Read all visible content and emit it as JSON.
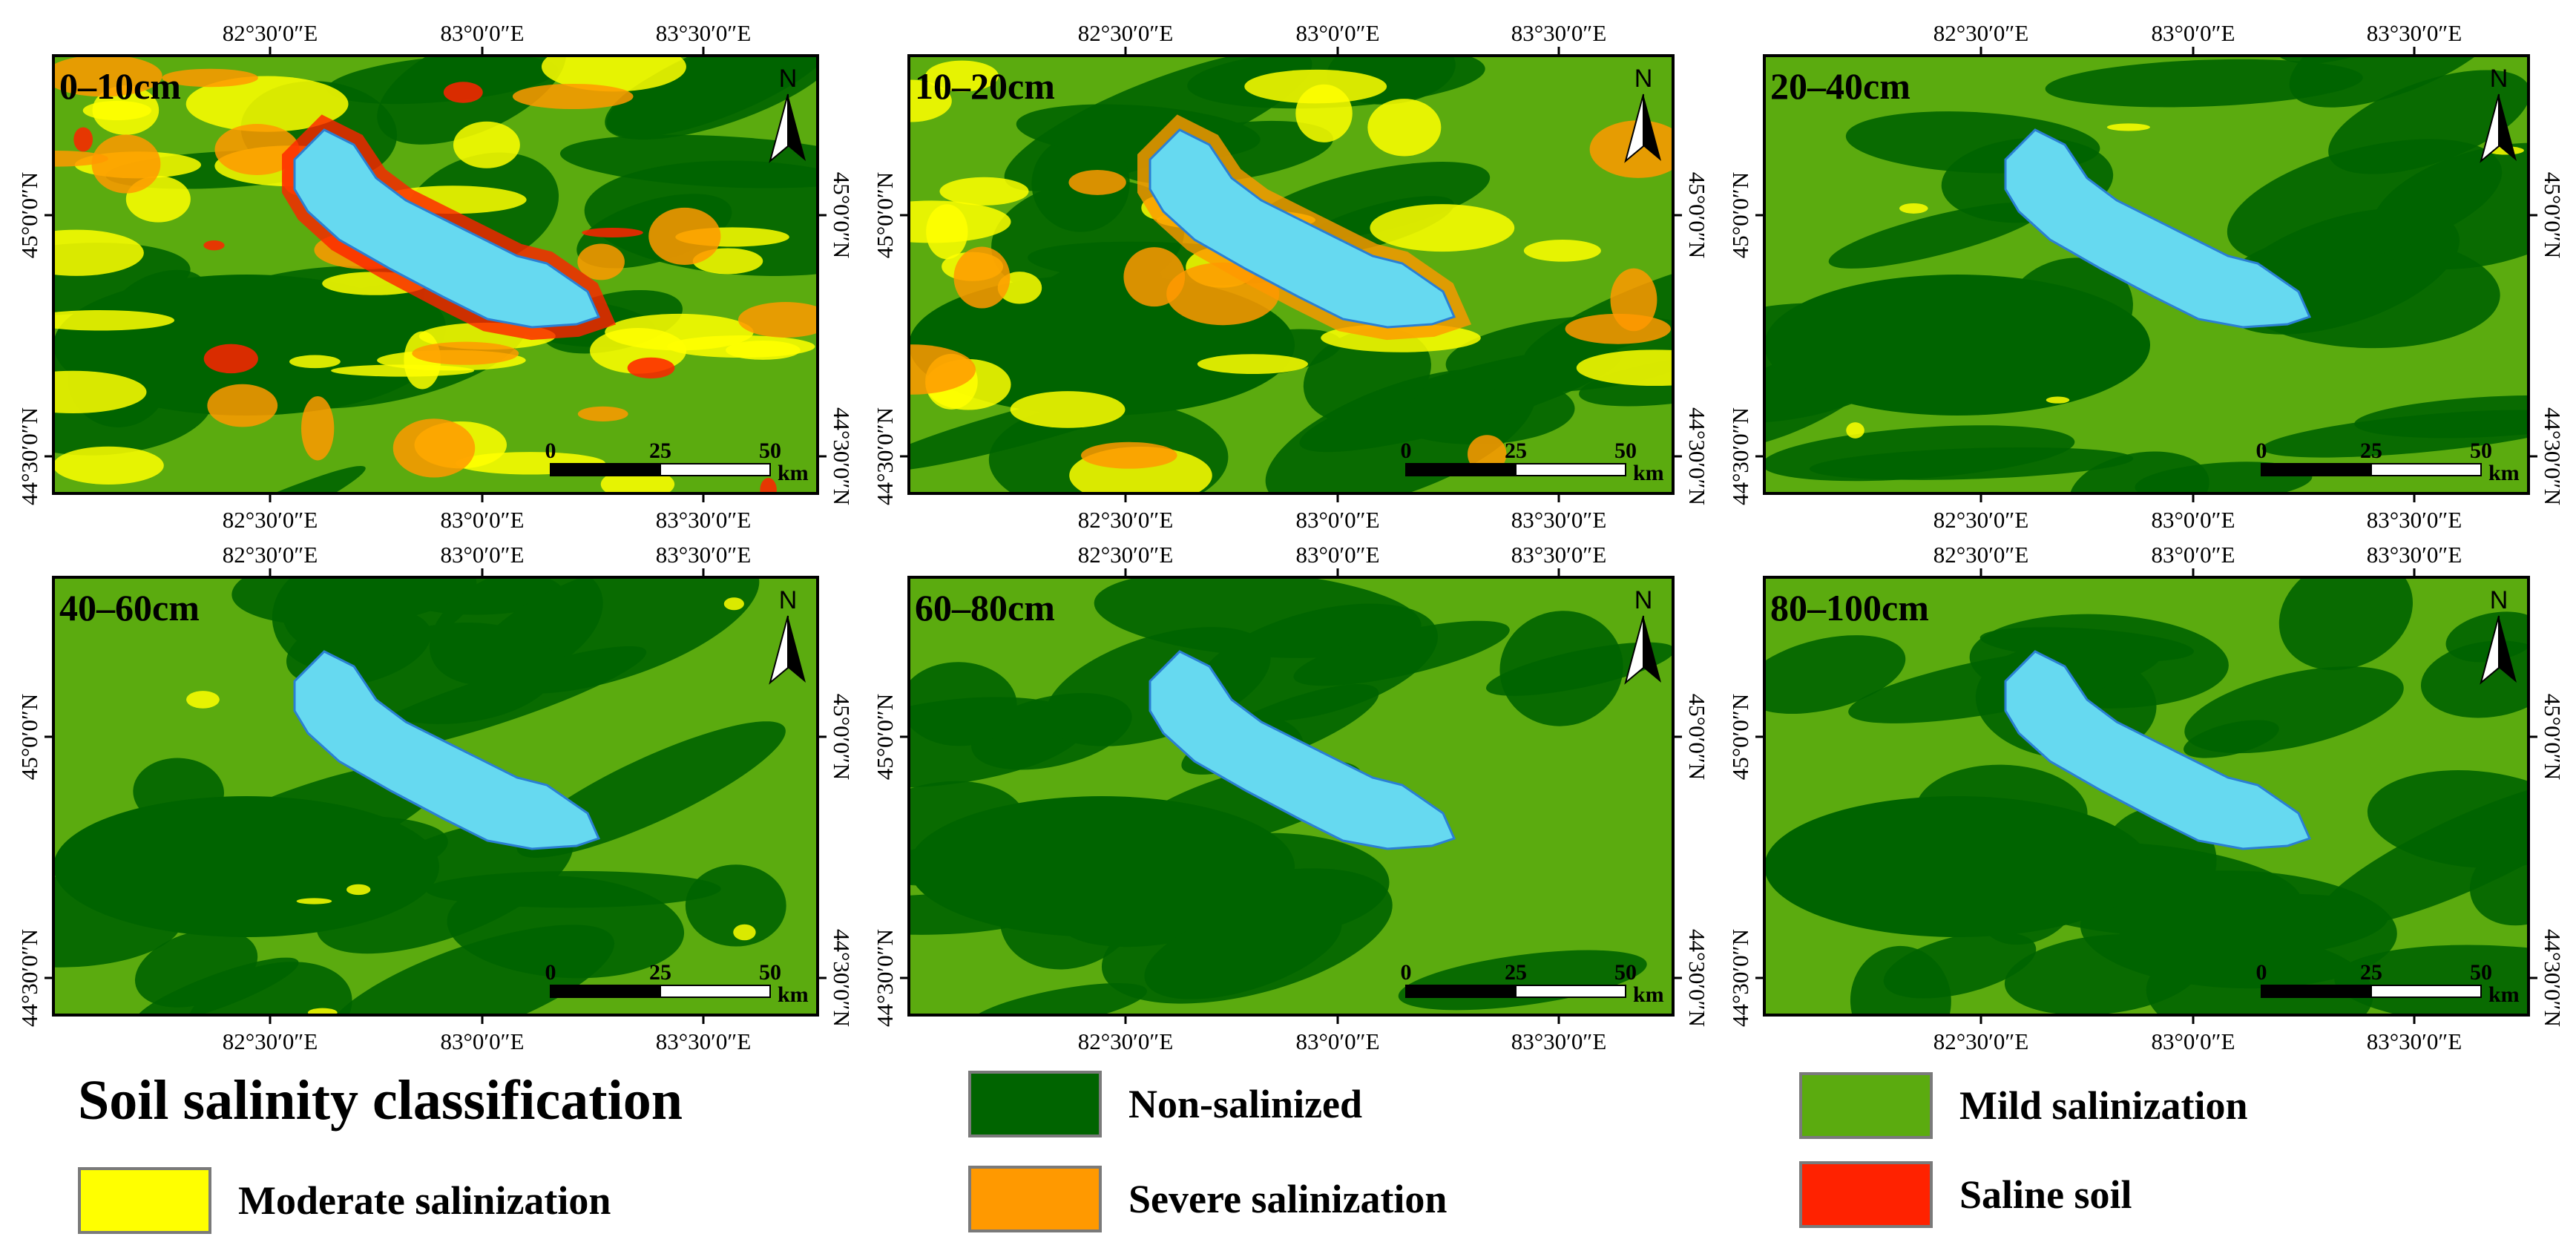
{
  "colors": {
    "background": "#ffffff",
    "frame": "#000000",
    "lake_fill": "#66d9f0",
    "lake_outline": "#2a7fd4",
    "scalebar_dark": "#000000",
    "scalebar_light": "#ffffff"
  },
  "axis_labels": {
    "lon": [
      "82°30′0″E",
      "83°0′0″E",
      "83°30′0″E"
    ],
    "lat": [
      "45°0′0″N",
      "44°30′0″N"
    ]
  },
  "north_arrow": {
    "letter": "N",
    "icon": "north-arrow-icon"
  },
  "scale_bar": {
    "ticks": [
      "0",
      "25",
      "50"
    ],
    "unit": "km"
  },
  "panels": [
    {
      "id": "p1",
      "depth_label": "0–10cm",
      "salinity_level": 4
    },
    {
      "id": "p2",
      "depth_label": "10–20cm",
      "salinity_level": 3
    },
    {
      "id": "p3",
      "depth_label": "20–40cm",
      "salinity_level": 1
    },
    {
      "id": "p4",
      "depth_label": "40–60cm",
      "salinity_level": 1
    },
    {
      "id": "p5",
      "depth_label": "60–80cm",
      "salinity_level": 0
    },
    {
      "id": "p6",
      "depth_label": "80–100cm",
      "salinity_level": 0
    }
  ],
  "legend": {
    "title": "Soil salinity classification",
    "items": [
      {
        "label": "Non-salinized",
        "color": "#006400"
      },
      {
        "label": "Mild salinization",
        "color": "#5bab0f"
      },
      {
        "label": "Moderate salinization",
        "color": "#ffff00"
      },
      {
        "label": "Severe salinization",
        "color": "#ff9900"
      },
      {
        "label": "Saline soil",
        "color": "#ff2200"
      }
    ]
  }
}
